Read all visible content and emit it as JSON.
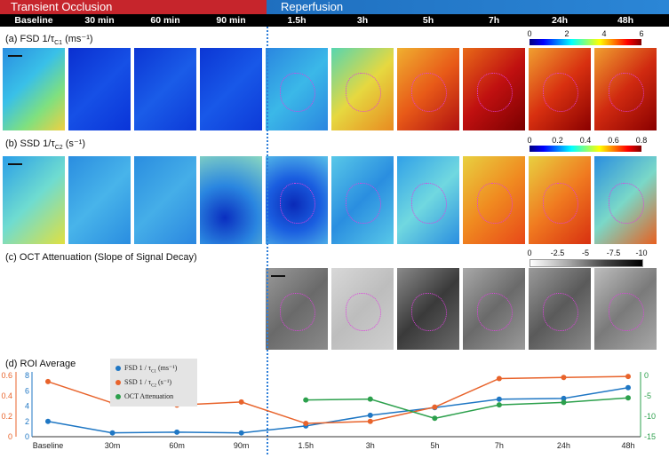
{
  "banner": {
    "occlusion": "Transient Occlusion",
    "reperfusion": "Reperfusion"
  },
  "timepoints": [
    "Baseline",
    "30 min",
    "60 min",
    "90 min",
    "1.5h",
    "3h",
    "5h",
    "7h",
    "24h",
    "48h"
  ],
  "panels": {
    "a": {
      "label": "(a) FSD 1/τ",
      "sub": "C1",
      "unit": " (ms⁻¹)",
      "ticks": [
        "0",
        "2",
        "4",
        "6"
      ]
    },
    "b": {
      "label": "(b) SSD 1/τ",
      "sub": "C2",
      "unit": " (s⁻¹)",
      "ticks": [
        "0",
        "0.2",
        "0.4",
        "0.6",
        "0.8"
      ]
    },
    "c": {
      "label": "(c) OCT Attenuation (Slope of Signal Decay)",
      "ticks": [
        "0",
        "-2.5",
        "-5",
        "-7.5",
        "-10"
      ]
    },
    "d": {
      "label": "(d) ROI Average"
    }
  },
  "colors": {
    "occlusion": "#c6252c",
    "reperfusion": "#2b86d6",
    "fsd": "#1f77c4",
    "ssd": "#e8632b",
    "oct": "#2ca04c"
  },
  "chart_data": {
    "type": "line",
    "categories": [
      "Baseline",
      "30m",
      "60m",
      "90m",
      "1.5h",
      "3h",
      "5h",
      "7h",
      "24h",
      "48h"
    ],
    "series": [
      {
        "name": "FSD 1 / τC1 (ms⁻¹)",
        "axis": "left-blue",
        "values": [
          2.0,
          0.5,
          0.6,
          0.5,
          1.4,
          2.8,
          3.8,
          4.9,
          5.0,
          6.4
        ]
      },
      {
        "name": "SSD 1 / τC2 (s⁻¹)",
        "axis": "left-orange",
        "values": [
          0.54,
          0.33,
          0.31,
          0.34,
          0.13,
          0.15,
          0.29,
          0.57,
          0.58,
          0.59
        ]
      },
      {
        "name": "OCT Attenuation",
        "axis": "right-green",
        "values": [
          null,
          null,
          null,
          null,
          -6.0,
          -5.8,
          -10.5,
          -7.2,
          -6.6,
          -5.5
        ]
      }
    ],
    "axes": {
      "left_orange": {
        "ticks": [
          "0",
          "0.2",
          "0.4",
          "0.6"
        ],
        "range": [
          0,
          0.6
        ]
      },
      "left_blue": {
        "ticks": [
          "0",
          "2",
          "4",
          "6",
          "8"
        ],
        "range": [
          0,
          8
        ]
      },
      "right_green": {
        "ticks": [
          "0",
          "-5",
          "-10",
          "-15"
        ],
        "range": [
          -15,
          0
        ]
      }
    },
    "legend": [
      "FSD 1 / τ",
      "SSD 1 / τ",
      "OCT Attenuation"
    ],
    "legend_subs": [
      "C1",
      "C2",
      ""
    ],
    "legend_units": [
      " (ms⁻¹)",
      " (s⁻¹)",
      ""
    ]
  }
}
